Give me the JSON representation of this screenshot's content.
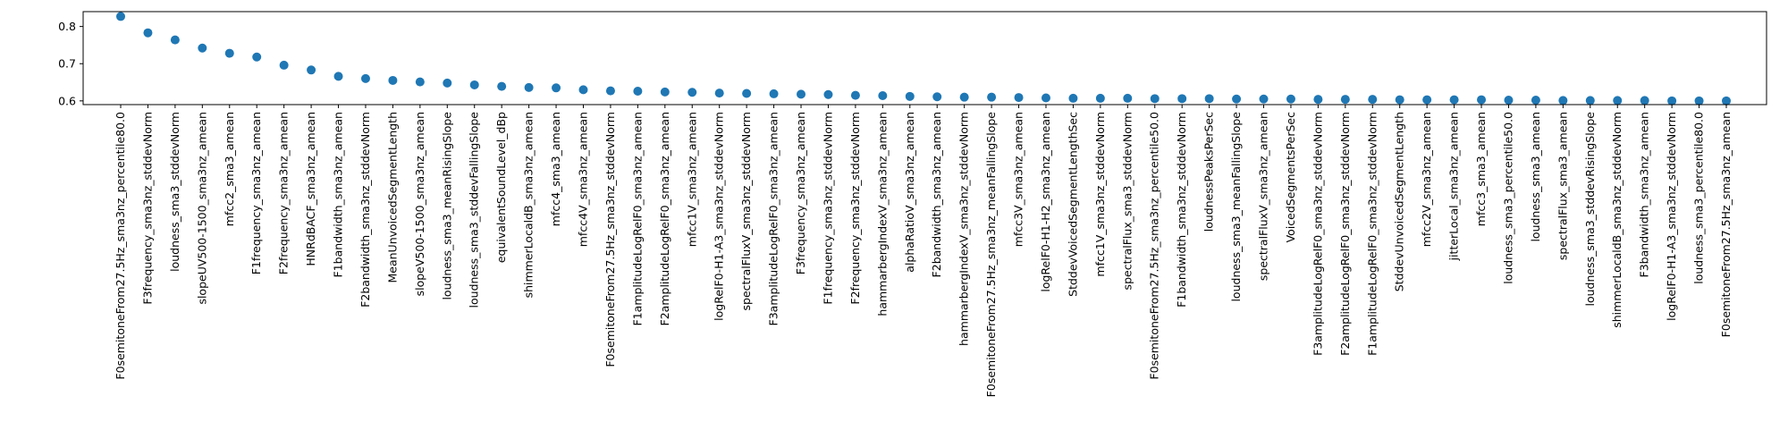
{
  "chart_data": {
    "type": "scatter",
    "title": "",
    "xlabel": "",
    "ylabel": "",
    "ylim": [
      0.59,
      0.84
    ],
    "yticks": [
      0.6,
      0.7,
      0.8
    ],
    "grid": false,
    "marker_color": "#1f77b4",
    "categories": [
      "F0semitoneFrom27.5Hz_sma3nz_percentile80.0",
      "F3frequency_sma3nz_stddevNorm",
      "loudness_sma3_stddevNorm",
      "slopeUV500-1500_sma3nz_amean",
      "mfcc2_sma3_amean",
      "F1frequency_sma3nz_amean",
      "F2frequency_sma3nz_amean",
      "HNRdBACF_sma3nz_amean",
      "F1bandwidth_sma3nz_amean",
      "F2bandwidth_sma3nz_stddevNorm",
      "MeanUnvoicedSegmentLength",
      "slopeV500-1500_sma3nz_amean",
      "loudness_sma3_meanRisingSlope",
      "loudness_sma3_stddevFallingSlope",
      "equivalentSoundLevel_dBp",
      "shimmerLocaldB_sma3nz_amean",
      "mfcc4_sma3_amean",
      "mfcc4V_sma3nz_amean",
      "F0semitoneFrom27.5Hz_sma3nz_stddevNorm",
      "F1amplitudeLogRelF0_sma3nz_amean",
      "F2amplitudeLogRelF0_sma3nz_amean",
      "mfcc1V_sma3nz_amean",
      "logRelF0-H1-A3_sma3nz_stddevNorm",
      "spectralFluxV_sma3nz_stddevNorm",
      "F3amplitudeLogRelF0_sma3nz_amean",
      "F3frequency_sma3nz_amean",
      "F1frequency_sma3nz_stddevNorm",
      "F2frequency_sma3nz_stddevNorm",
      "hammarbergIndexV_sma3nz_amean",
      "alphaRatioV_sma3nz_amean",
      "F2bandwidth_sma3nz_amean",
      "hammarbergIndexV_sma3nz_stddevNorm",
      "F0semitoneFrom27.5Hz_sma3nz_meanFallingSlope",
      "mfcc3V_sma3nz_amean",
      "logRelF0-H1-H2_sma3nz_amean",
      "StddevVoicedSegmentLengthSec",
      "mfcc1V_sma3nz_stddevNorm",
      "spectralFlux_sma3_stddevNorm",
      "F0semitoneFrom27.5Hz_sma3nz_percentile50.0",
      "F1bandwidth_sma3nz_stddevNorm",
      "loudnessPeaksPerSec",
      "loudness_sma3_meanFallingSlope",
      "spectralFluxV_sma3nz_amean",
      "VoicedSegmentsPerSec",
      "F3amplitudeLogRelF0_sma3nz_stddevNorm",
      "F2amplitudeLogRelF0_sma3nz_stddevNorm",
      "F1amplitudeLogRelF0_sma3nz_stddevNorm",
      "StddevUnvoicedSegmentLength",
      "mfcc2V_sma3nz_amean",
      "jitterLocal_sma3nz_amean",
      "mfcc3_sma3_amean",
      "loudness_sma3_percentile50.0",
      "loudness_sma3_amean",
      "spectralFlux_sma3_amean",
      "loudness_sma3_stddevRisingSlope",
      "shimmerLocaldB_sma3nz_stddevNorm",
      "F3bandwidth_sma3nz_amean",
      "logRelF0-H1-A3_sma3nz_stddevNorm",
      "loudness_sma3_percentile80.0",
      "F0semitoneFrom27.5Hz_sma3nz_amean"
    ],
    "values": [
      0.827,
      0.783,
      0.764,
      0.742,
      0.728,
      0.718,
      0.696,
      0.683,
      0.666,
      0.66,
      0.655,
      0.651,
      0.648,
      0.643,
      0.639,
      0.636,
      0.635,
      0.63,
      0.627,
      0.626,
      0.624,
      0.623,
      0.621,
      0.62,
      0.619,
      0.618,
      0.617,
      0.615,
      0.614,
      0.612,
      0.611,
      0.61,
      0.61,
      0.609,
      0.608,
      0.607,
      0.607,
      0.607,
      0.606,
      0.606,
      0.606,
      0.605,
      0.605,
      0.605,
      0.604,
      0.604,
      0.604,
      0.603,
      0.603,
      0.603,
      0.603,
      0.602,
      0.602,
      0.601,
      0.601,
      0.601,
      0.601,
      0.6,
      0.6,
      0.6
    ]
  }
}
